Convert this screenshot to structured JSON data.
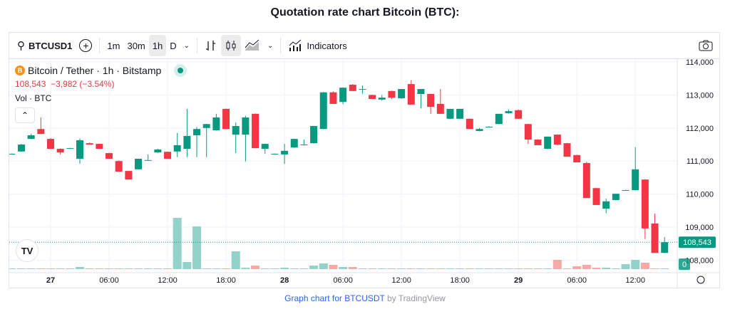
{
  "page_title": "Quotation rate chart Bitcoin (BTC):",
  "toolbar": {
    "symbol": "BTCUSD1",
    "intervals": [
      "1m",
      "30m",
      "1h",
      "D"
    ],
    "active_interval": "1h",
    "indicators": "Indicators"
  },
  "legend": {
    "name": "Bitcoin / Tether · 1h · Bitstamp",
    "last": "108,543",
    "change": "−3,982 (−3.54%)",
    "volume_label": "Vol · BTC"
  },
  "footer": {
    "link": "Graph chart for BTCUSDT",
    "by": "by TradingView"
  },
  "colors": {
    "up": "#089981",
    "down": "#f23645",
    "vol_up": "#92d2c8",
    "vol_down": "#f7a9a7"
  },
  "chart_data": {
    "type": "candlestick",
    "title": "Bitcoin / Tether · 1h · Bitstamp",
    "ylim": [
      107700,
      114200
    ],
    "y_ticks": [
      "114,000",
      "113,000",
      "112,000",
      "111,000",
      "110,000",
      "109,000",
      "108,000"
    ],
    "y_tick_values": [
      114000,
      113000,
      112000,
      111000,
      110000,
      109000,
      108000
    ],
    "x_ticks": [
      {
        "label": "27",
        "hour": 0,
        "bold": true
      },
      {
        "label": "06:00",
        "hour": 6
      },
      {
        "label": "12:00",
        "hour": 12
      },
      {
        "label": "18:00",
        "hour": 18
      },
      {
        "label": "28",
        "hour": 24,
        "bold": true
      },
      {
        "label": "06:00",
        "hour": 30
      },
      {
        "label": "12:00",
        "hour": 36
      },
      {
        "label": "18:00",
        "hour": 42
      },
      {
        "label": "29",
        "hour": 48,
        "bold": true
      },
      {
        "label": "06:00",
        "hour": 54
      },
      {
        "label": "12:00",
        "hour": 60
      }
    ],
    "first_candle_hour": -4,
    "last_price": "108,543",
    "last_price_value": 108543,
    "volume_label": "0",
    "candles": [
      [
        111220,
        111230,
        111210,
        111220
      ],
      [
        111290,
        111520,
        111280,
        111500
      ],
      [
        111670,
        111830,
        111660,
        111780
      ],
      [
        111970,
        112320,
        111820,
        111820
      ],
      [
        111670,
        111700,
        111370,
        111370
      ],
      [
        111370,
        111380,
        111200,
        111260
      ],
      [
        111390,
        111400,
        111380,
        111390
      ],
      [
        111070,
        111680,
        110920,
        111630
      ],
      [
        111540,
        111560,
        111500,
        111500
      ],
      [
        111520,
        111530,
        111370,
        111370
      ],
      [
        111240,
        111250,
        111070,
        111070
      ],
      [
        111000,
        111020,
        110680,
        110680
      ],
      [
        110700,
        110700,
        110440,
        110440
      ],
      [
        110750,
        111070,
        110740,
        111070
      ],
      [
        111030,
        111200,
        111020,
        111030
      ],
      [
        111260,
        111370,
        111250,
        111350
      ],
      [
        111280,
        111290,
        111070,
        111070
      ],
      [
        111290,
        111850,
        111120,
        111480
      ],
      [
        111370,
        112580,
        111120,
        111760
      ],
      [
        111780,
        112030,
        111120,
        111970
      ],
      [
        112000,
        112130,
        111120,
        112120
      ],
      [
        111930,
        112430,
        111920,
        112320
      ],
      [
        112580,
        112590,
        111970,
        111970
      ],
      [
        111800,
        112170,
        111240,
        112060
      ],
      [
        111800,
        112370,
        110990,
        112320
      ],
      [
        112430,
        112440,
        111390,
        111390
      ],
      [
        111370,
        111530,
        111220,
        111520
      ],
      [
        111220,
        111230,
        111210,
        111220
      ],
      [
        111200,
        111520,
        110910,
        111310
      ],
      [
        111410,
        111680,
        111400,
        111670
      ],
      [
        111480,
        111650,
        111470,
        111500
      ],
      [
        111540,
        112070,
        111530,
        112060
      ],
      [
        111970,
        113090,
        111960,
        113080
      ],
      [
        113080,
        113110,
        112730,
        112730
      ],
      [
        112790,
        113230,
        112720,
        113220
      ],
      [
        113310,
        113330,
        113120,
        113120
      ],
      [
        113180,
        113290,
        113040,
        113180
      ],
      [
        113000,
        113010,
        112880,
        112880
      ],
      [
        112860,
        113000,
        112830,
        112920
      ],
      [
        113120,
        113130,
        112880,
        112920
      ],
      [
        112900,
        113180,
        112880,
        113180
      ],
      [
        113330,
        113450,
        112710,
        112710
      ],
      [
        113030,
        113180,
        112590,
        113180
      ],
      [
        113030,
        113040,
        112430,
        112640
      ],
      [
        112730,
        113180,
        112430,
        112430
      ],
      [
        112280,
        112580,
        112270,
        112580
      ],
      [
        112280,
        112580,
        112270,
        112580
      ],
      [
        112280,
        112290,
        111970,
        111970
      ],
      [
        111910,
        112000,
        111900,
        111970
      ],
      [
        112040,
        112050,
        112030,
        112040
      ],
      [
        112120,
        112430,
        112110,
        112430
      ],
      [
        112450,
        112560,
        112440,
        112510
      ],
      [
        112540,
        112560,
        112280,
        112280
      ],
      [
        112120,
        112130,
        111520,
        111650
      ],
      [
        111650,
        111660,
        111480,
        111480
      ],
      [
        111370,
        111740,
        111360,
        111740
      ],
      [
        111800,
        111810,
        111480,
        111500
      ],
      [
        111540,
        111550,
        111130,
        111130
      ],
      [
        111180,
        111190,
        110960,
        110960
      ],
      [
        110940,
        110980,
        109880,
        109880
      ],
      [
        110180,
        110190,
        109670,
        109670
      ],
      [
        109560,
        109860,
        109420,
        109780
      ],
      [
        109820,
        110010,
        109810,
        110010
      ],
      [
        110120,
        110130,
        110110,
        110120
      ],
      [
        110120,
        111420,
        110110,
        110750
      ],
      [
        110440,
        110450,
        108640,
        108960
      ],
      [
        109110,
        109410,
        108220,
        108220
      ],
      [
        108220,
        108700,
        108210,
        108543
      ]
    ],
    "volumes": [
      1,
      1,
      1,
      1,
      1,
      1,
      1,
      3,
      1,
      1,
      1,
      1,
      1,
      1,
      1,
      1,
      1,
      72,
      10,
      60,
      1,
      1,
      1,
      25,
      2,
      5,
      1,
      1,
      2,
      1,
      1,
      5,
      8,
      6,
      3,
      3,
      1,
      1,
      1,
      1,
      1,
      1,
      1,
      1,
      1,
      1,
      1,
      1,
      1,
      1,
      1,
      1,
      1,
      1,
      1,
      1,
      13,
      1,
      4,
      6,
      2,
      2,
      1,
      7,
      13,
      9,
      1,
      1
    ]
  }
}
